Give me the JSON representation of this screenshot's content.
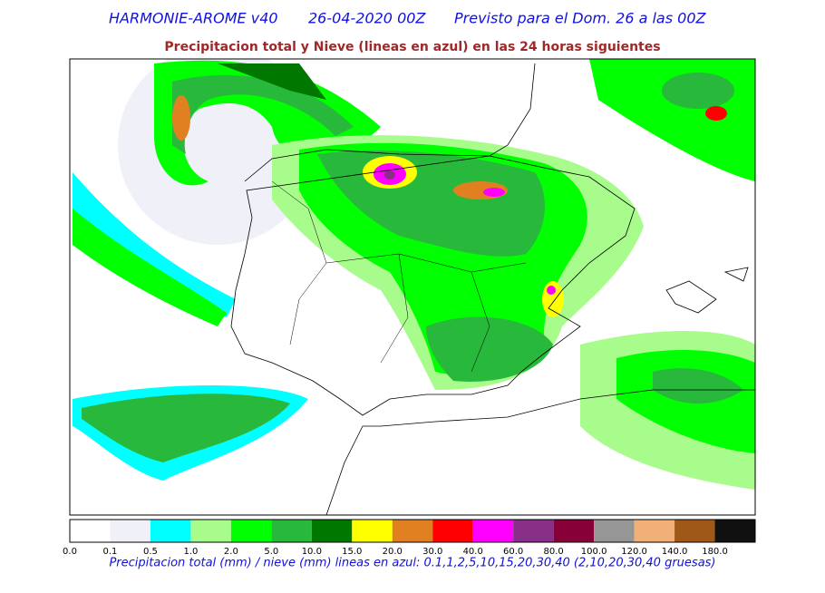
{
  "header": {
    "model": "HARMONIE-AROME v40",
    "run": "26-04-2020 00Z",
    "forecast": "Previsto para el Dom. 26 a las 00Z"
  },
  "subtitle": "Precipitacion total y Nieve (lineas en azul) en las 24 horas siguientes",
  "colorbar": {
    "labels": [
      "0.0",
      "0.1",
      "0.5",
      "1.0",
      "2.0",
      "5.0",
      "10.0",
      "15.0",
      "20.0",
      "30.0",
      "40.0",
      "60.0",
      "80.0",
      "100.0",
      "120.0",
      "140.0",
      "180.0"
    ],
    "colors": [
      "#ffffff",
      "#f0f0f8",
      "#00ffff",
      "#a8fc8c",
      "#00ff00",
      "#28b83c",
      "#007800",
      "#ffff00",
      "#e08020",
      "#ff0000",
      "#ff00ff",
      "#883088",
      "#880038",
      "#969696",
      "#f0b078",
      "#a05818",
      "#101010"
    ]
  },
  "footer": "Precipitacion total (mm) / nieve (mm) lineas en azul: 0.1,1,2,5,10,15,20,30,40  (2,10,20,30,40 gruesas)"
}
